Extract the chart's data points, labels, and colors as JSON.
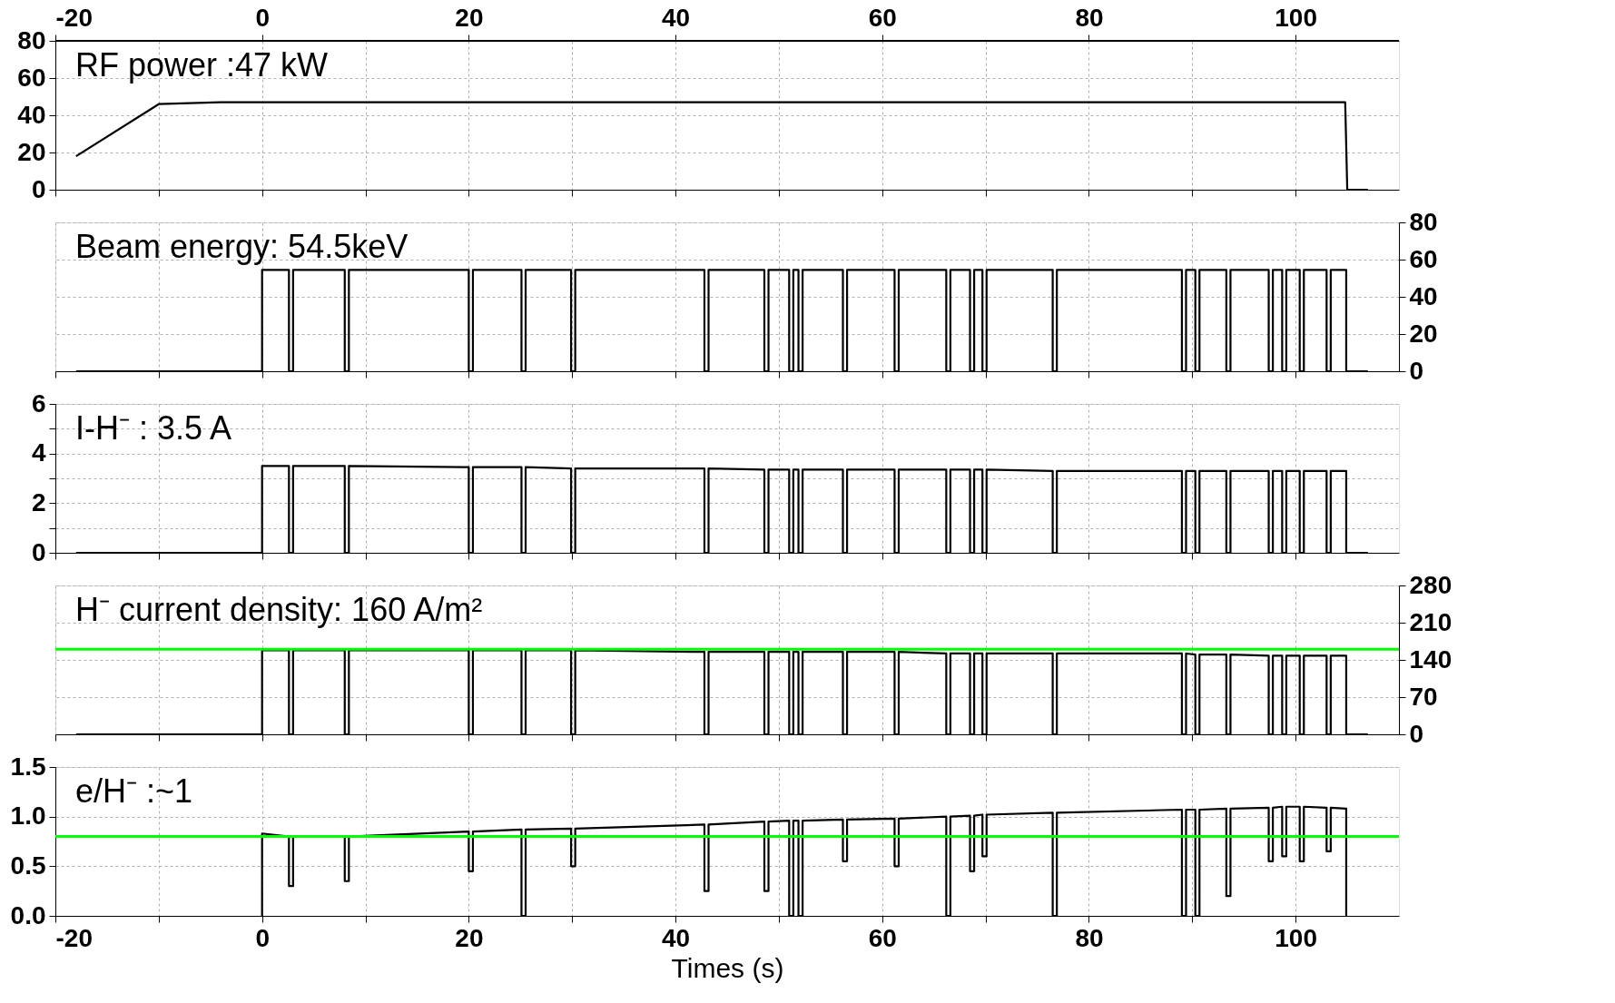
{
  "chart_data": [
    {
      "type": "line",
      "xlim": [
        -20,
        110
      ],
      "xticks": [
        -20,
        {
          "value": -10,
          "label": null
        },
        0,
        {
          "value": 10,
          "label": null
        },
        20,
        {
          "value": 30,
          "label": null
        },
        40,
        {
          "value": 50,
          "label": null
        },
        60,
        {
          "value": 70,
          "label": null
        },
        80,
        {
          "value": 90,
          "label": null
        },
        100
      ],
      "x2lim": [
        -20,
        110
      ],
      "x2ticks": [
        -20,
        0,
        20,
        40,
        60,
        80,
        100
      ],
      "tick_labels": "y",
      "ylim": [
        0,
        80
      ],
      "yticks": [
        0,
        20,
        40,
        60,
        80
      ],
      "grid": true,
      "annotations": [
        "RF power :47 kW"
      ],
      "series": [
        {
          "color": "#000000",
          "x": [
            -18,
            -10,
            -4,
            104.8,
            105,
            107
          ],
          "values": [
            18,
            46,
            47,
            47,
            0,
            0
          ]
        }
      ]
    },
    {
      "type": "line",
      "xlim": [
        -20,
        110
      ],
      "xticks": [
        -20,
        {
          "value": -10,
          "label": null
        },
        0,
        {
          "value": 10,
          "label": null
        },
        20,
        {
          "value": 30,
          "label": null
        },
        40,
        {
          "value": 50,
          "label": null
        },
        60,
        {
          "value": 70,
          "label": null
        },
        80,
        {
          "value": 90,
          "label": null
        },
        100
      ],
      "y2lim": [
        0,
        80
      ],
      "y2ticks": [
        0,
        20,
        40,
        60,
        80
      ],
      "tick_labels": "y",
      "grid": true,
      "annotations": [
        "Beam energy: 54.5keV"
      ],
      "series": [
        {
          "color": "#000000",
          "axis": "y2",
          "x": [
            -18,
            0,
            0,
            2.6,
            2.6,
            3,
            3,
            8,
            8,
            8.4,
            8.4,
            20,
            20,
            20.4,
            20.4,
            25.1,
            25.1,
            25.5,
            25.5,
            29.9,
            29.9,
            30.3,
            30.3,
            42.8,
            42.8,
            43.2,
            43.2,
            48.6,
            48.6,
            49,
            49,
            51,
            51,
            51.4,
            51.4,
            51.9,
            51.9,
            52.3,
            52.3,
            56.2,
            56.2,
            56.6,
            56.6,
            61.2,
            61.2,
            61.6,
            61.6,
            66.2,
            66.2,
            66.6,
            66.6,
            68.5,
            68.5,
            68.9,
            68.9,
            69.7,
            69.7,
            70.1,
            70.1,
            76.5,
            76.5,
            76.9,
            76.9,
            89,
            89,
            89.4,
            89.4,
            90.3,
            90.3,
            90.7,
            90.7,
            93.3,
            93.3,
            93.7,
            93.7,
            97.4,
            97.4,
            97.8,
            97.8,
            98.7,
            98.7,
            99.1,
            99.1,
            100.4,
            100.4,
            100.8,
            100.8,
            103,
            103,
            103.4,
            103.4,
            104.9,
            104.9,
            107
          ],
          "values": [
            0,
            0,
            54.5,
            54.5,
            0,
            0,
            54.5,
            54.5,
            0,
            0,
            54.5,
            54.5,
            0,
            0,
            54.5,
            54.5,
            0,
            0,
            54.5,
            54.5,
            0,
            0,
            54.5,
            54.5,
            0,
            0,
            54.5,
            54.5,
            0,
            0,
            54.5,
            54.5,
            0,
            0,
            54.5,
            54.5,
            0,
            0,
            54.5,
            54.5,
            0,
            0,
            54.5,
            54.5,
            0,
            0,
            54.5,
            54.5,
            0,
            0,
            54.5,
            54.5,
            0,
            0,
            54.5,
            54.5,
            0,
            0,
            54.5,
            54.5,
            0,
            0,
            54.5,
            54.5,
            0,
            0,
            54.5,
            54.5,
            0,
            0,
            54.5,
            54.5,
            0,
            0,
            54.5,
            54.5,
            0,
            0,
            54.5,
            54.5,
            0,
            0,
            54.5,
            54.5,
            0,
            0,
            54.5,
            54.5,
            0,
            0,
            54.5,
            54.5,
            0,
            0
          ]
        }
      ]
    },
    {
      "type": "line",
      "xlim": [
        -20,
        110
      ],
      "xticks": [
        -20,
        {
          "value": -10,
          "label": null
        },
        0,
        {
          "value": 10,
          "label": null
        },
        20,
        {
          "value": 30,
          "label": null
        },
        40,
        {
          "value": 50,
          "label": null
        },
        60,
        {
          "value": 70,
          "label": null
        },
        80,
        {
          "value": 90,
          "label": null
        },
        100
      ],
      "ylim": [
        0,
        6
      ],
      "yticks": [
        0,
        {
          "value": 1,
          "label": null
        },
        2,
        {
          "value": 3,
          "label": null
        },
        4,
        {
          "value": 5,
          "label": null
        },
        6
      ],
      "tick_labels": "y",
      "grid": true,
      "annotations": [
        "I-H⁻ : 3.5 A"
      ],
      "series": [
        {
          "color": "#000000",
          "x": [
            -18,
            0,
            0,
            2.6,
            2.6,
            3,
            3,
            8,
            8,
            8.4,
            8.4,
            20,
            20,
            20.4,
            20.4,
            25.1,
            25.1,
            25.5,
            25.5,
            29.9,
            29.9,
            30.3,
            30.3,
            42.8,
            42.8,
            43.2,
            43.2,
            48.6,
            48.6,
            49,
            49,
            51,
            51,
            51.4,
            51.4,
            51.9,
            51.9,
            52.3,
            52.3,
            56.2,
            56.2,
            56.6,
            56.6,
            61.2,
            61.2,
            61.6,
            61.6,
            66.2,
            66.2,
            66.6,
            66.6,
            68.5,
            68.5,
            68.9,
            68.9,
            69.7,
            69.7,
            70.1,
            70.1,
            76.5,
            76.5,
            76.9,
            76.9,
            89,
            89,
            89.4,
            89.4,
            90.3,
            90.3,
            90.7,
            90.7,
            93.3,
            93.3,
            93.7,
            93.7,
            97.4,
            97.4,
            97.8,
            97.8,
            98.7,
            98.7,
            99.1,
            99.1,
            100.4,
            100.4,
            100.8,
            100.8,
            103,
            103,
            103.4,
            103.4,
            104.9,
            104.9,
            107
          ],
          "values": [
            0,
            0,
            3.5,
            3.5,
            0,
            0,
            3.5,
            3.5,
            0,
            0,
            3.5,
            3.45,
            0,
            0,
            3.45,
            3.45,
            0,
            0,
            3.45,
            3.4,
            0,
            0,
            3.4,
            3.4,
            0,
            0,
            3.4,
            3.35,
            0,
            0,
            3.35,
            3.35,
            0,
            0,
            3.35,
            3.35,
            0,
            0,
            3.35,
            3.35,
            0,
            0,
            3.35,
            3.35,
            0,
            0,
            3.35,
            3.35,
            0,
            0,
            3.35,
            3.35,
            0,
            0,
            3.35,
            3.35,
            0,
            0,
            3.35,
            3.3,
            0,
            0,
            3.3,
            3.3,
            0,
            0,
            3.3,
            3.3,
            0,
            0,
            3.3,
            3.3,
            0,
            0,
            3.3,
            3.3,
            0,
            0,
            3.3,
            3.3,
            0,
            0,
            3.3,
            3.3,
            0,
            0,
            3.3,
            3.3,
            0,
            0,
            3.3,
            3.3,
            0,
            0
          ]
        }
      ]
    },
    {
      "type": "line",
      "xlim": [
        -20,
        110
      ],
      "xticks": [
        -20,
        {
          "value": -10,
          "label": null
        },
        0,
        {
          "value": 10,
          "label": null
        },
        20,
        {
          "value": 30,
          "label": null
        },
        40,
        {
          "value": 50,
          "label": null
        },
        60,
        {
          "value": 70,
          "label": null
        },
        80,
        {
          "value": 90,
          "label": null
        },
        100
      ],
      "y2lim": [
        0,
        280
      ],
      "y2ticks": [
        0,
        70,
        140,
        210,
        280
      ],
      "tick_labels": "y",
      "grid": true,
      "annotations": [
        "H⁻ current density: 160 A/m²"
      ],
      "ref_lines": [
        {
          "axis": "y2",
          "value": 160,
          "color": "#00ff00"
        }
      ],
      "series": [
        {
          "color": "#000000",
          "axis": "y2",
          "x": [
            -18,
            0,
            0,
            2.6,
            2.6,
            3,
            3,
            8,
            8,
            8.4,
            8.4,
            20,
            20,
            20.4,
            20.4,
            25.1,
            25.1,
            25.5,
            25.5,
            29.9,
            29.9,
            30.3,
            30.3,
            42.8,
            42.8,
            43.2,
            43.2,
            48.6,
            48.6,
            49,
            49,
            51,
            51,
            51.4,
            51.4,
            51.9,
            51.9,
            52.3,
            52.3,
            56.2,
            56.2,
            56.6,
            56.6,
            61.2,
            61.2,
            61.6,
            61.6,
            66.2,
            66.2,
            66.6,
            66.6,
            68.5,
            68.5,
            68.9,
            68.9,
            69.7,
            69.7,
            70.1,
            70.1,
            76.5,
            76.5,
            76.9,
            76.9,
            89,
            89,
            89.4,
            89.4,
            90.3,
            90.3,
            90.7,
            90.7,
            93.3,
            93.3,
            93.7,
            93.7,
            97.4,
            97.4,
            97.8,
            97.8,
            98.7,
            98.7,
            99.1,
            99.1,
            100.4,
            100.4,
            100.8,
            100.8,
            103,
            103,
            103.4,
            103.4,
            104.9,
            104.9,
            107
          ],
          "values": [
            0,
            0,
            158,
            158,
            0,
            0,
            158,
            158,
            0,
            0,
            158,
            158,
            0,
            0,
            158,
            158,
            0,
            0,
            158,
            158,
            0,
            0,
            158,
            155,
            0,
            0,
            155,
            155,
            0,
            0,
            155,
            155,
            0,
            0,
            155,
            155,
            0,
            0,
            155,
            155,
            0,
            0,
            155,
            155,
            0,
            0,
            155,
            152,
            0,
            0,
            152,
            152,
            0,
            0,
            152,
            152,
            0,
            0,
            152,
            152,
            0,
            0,
            152,
            152,
            0,
            0,
            152,
            150,
            0,
            0,
            150,
            150,
            0,
            0,
            150,
            148,
            0,
            0,
            148,
            148,
            0,
            0,
            148,
            148,
            0,
            0,
            148,
            148,
            0,
            0,
            148,
            148,
            0,
            0
          ]
        }
      ]
    },
    {
      "type": "line",
      "xlim": [
        -20,
        110
      ],
      "xticks": [
        -20,
        {
          "value": -10,
          "label": null
        },
        0,
        {
          "value": 10,
          "label": null
        },
        20,
        {
          "value": 30,
          "label": null
        },
        40,
        {
          "value": 50,
          "label": null
        },
        60,
        {
          "value": 70,
          "label": null
        },
        80,
        {
          "value": 90,
          "label": null
        },
        100
      ],
      "ylim": [
        0,
        1.5
      ],
      "yticks": [
        {
          "value": 0,
          "label": "0.0"
        },
        0.5,
        {
          "value": 1,
          "label": "1.0"
        },
        1.5
      ],
      "xlabel": "Times (s)",
      "grid": true,
      "annotations": [
        "e/H⁻ :~1"
      ],
      "ref_lines": [
        {
          "axis": "y",
          "value": 0.8,
          "color": "#00ff00"
        }
      ],
      "series": [
        {
          "color": "#000000",
          "x": [
            0,
            0,
            2.6,
            2.6,
            3,
            3,
            8,
            8,
            8.4,
            8.4,
            20,
            20,
            20.4,
            20.4,
            25.1,
            25.1,
            25.5,
            25.5,
            29.9,
            29.9,
            30.3,
            30.3,
            42.8,
            42.8,
            43.2,
            43.2,
            48.6,
            48.6,
            49,
            49,
            51,
            51,
            51.4,
            51.4,
            51.9,
            51.9,
            52.3,
            52.3,
            56.2,
            56.2,
            56.6,
            56.6,
            61.2,
            61.2,
            61.6,
            61.6,
            66.2,
            66.2,
            66.6,
            66.6,
            68.5,
            68.5,
            68.9,
            68.9,
            69.7,
            69.7,
            70.1,
            70.1,
            76.5,
            76.5,
            76.9,
            76.9,
            89,
            89,
            89.4,
            89.4,
            90.3,
            90.3,
            90.7,
            90.7,
            93.3,
            93.3,
            93.7,
            93.7,
            97.4,
            97.4,
            97.8,
            97.8,
            98.7,
            98.7,
            99.1,
            99.1,
            100.4,
            100.4,
            100.8,
            100.8,
            103,
            103,
            103.4,
            103.4,
            104.9,
            104.9
          ],
          "values": [
            0,
            0.83,
            0.8,
            0.3,
            0.3,
            0.8,
            0.8,
            0.35,
            0.35,
            0.8,
            0.85,
            0.45,
            0.45,
            0.85,
            0.87,
            0,
            0,
            0.87,
            0.88,
            0.5,
            0.5,
            0.88,
            0.92,
            0.25,
            0.25,
            0.92,
            0.95,
            0.25,
            0.25,
            0.95,
            0.96,
            0,
            0,
            0.96,
            0.96,
            0,
            0,
            0.96,
            0.97,
            0.55,
            0.55,
            0.97,
            0.98,
            0.5,
            0.5,
            0.98,
            1.0,
            0,
            0,
            1.0,
            1.01,
            0.45,
            0.45,
            1.01,
            1.02,
            0.6,
            0.6,
            1.02,
            1.04,
            0,
            0,
            1.04,
            1.07,
            0,
            0,
            1.07,
            1.07,
            0,
            0,
            1.07,
            1.08,
            0.2,
            0.2,
            1.08,
            1.09,
            0.55,
            0.55,
            1.09,
            1.1,
            0.6,
            0.6,
            1.1,
            1.1,
            0.55,
            0.55,
            1.1,
            1.09,
            0.65,
            0.65,
            1.09,
            1.08,
            0
          ]
        }
      ]
    }
  ]
}
